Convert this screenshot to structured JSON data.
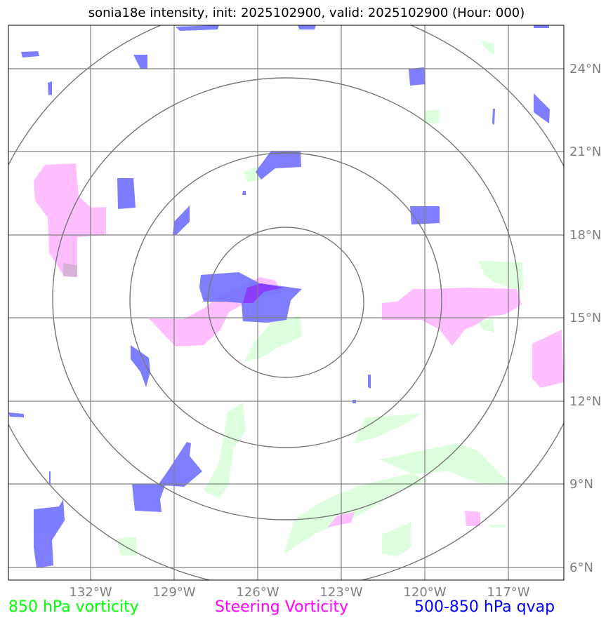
{
  "title": "sonia18e intensity, init: 2025102900, valid: 2025102900 (Hour: 000)",
  "map": {
    "lon_ticks": [
      "132°W",
      "129°W",
      "126°W",
      "123°W",
      "120°W",
      "117°W"
    ],
    "lat_ticks": [
      "24°N",
      "21°N",
      "18°N",
      "15°N",
      "12°N",
      "9°N",
      "6°N"
    ],
    "center": "125°W, 15.6°N",
    "range_rings": 4
  },
  "legend": {
    "vorticity_850": "850 hPa vorticity",
    "steering": "Steering Vorticity",
    "qvap": "500-850 hPa qvap"
  },
  "colors": {
    "vorticity_850": "#00ff00",
    "steering": "#ff00ff",
    "qvap": "#0000ff",
    "grid": "#808080",
    "ring": "#777777"
  }
}
